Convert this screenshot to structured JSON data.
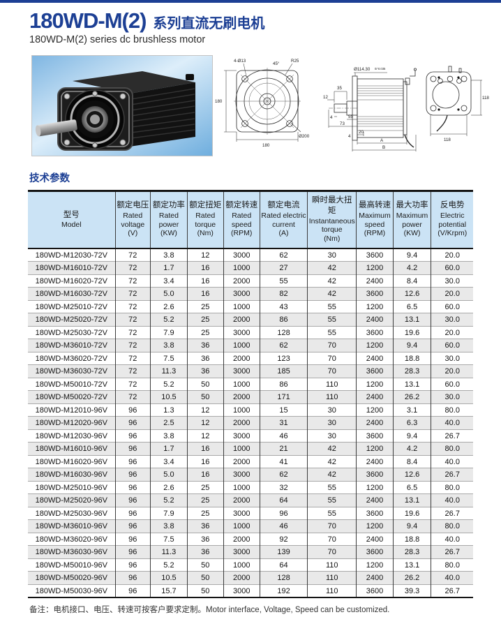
{
  "colors": {
    "brand_blue": "#1c3f94",
    "table_header_bg": "#cbe3f5",
    "row_stripe": "#e9e9e9",
    "border_dark": "#141414",
    "border_light": "#a9a9a9"
  },
  "header": {
    "model_series": "180WD-M(2)",
    "title_cn": "系列直流无刷电机",
    "subtitle": "180WD-M(2) series dc brushless motor"
  },
  "figures": {
    "front_view": {
      "bolt_label": "4-Ø13",
      "angle_label": "45°",
      "radius_label": "R25",
      "height_label": "180",
      "width_label": "180",
      "circle_label": "Ø200"
    },
    "side_view": {
      "shaft_dia_label": "Ø114.30",
      "shaft_tol_label": "0/-0.035",
      "dim_12": "12",
      "dim_35": "35",
      "dim_4a": "4",
      "dim_55": "55",
      "dim_73": "73",
      "dim_4b": "4",
      "dim_20": "20",
      "dim_a": "A",
      "dim_b": "B"
    },
    "rear_view": {
      "dim_height": "118",
      "dim_width": "118"
    }
  },
  "section_title": "技术参数",
  "table": {
    "columns": [
      {
        "key": "model",
        "cn": "型号",
        "en": "Model",
        "unit": ""
      },
      {
        "key": "rated-voltage",
        "cn": "额定电压",
        "en": "Rated voltage",
        "unit": "(V)"
      },
      {
        "key": "rated-power",
        "cn": "额定功率",
        "en": "Rated power",
        "unit": "(KW)"
      },
      {
        "key": "rated-torque",
        "cn": "额定扭矩",
        "en": "Rated torque",
        "unit": "(Nm)"
      },
      {
        "key": "rated-speed",
        "cn": "额定转速",
        "en": "Rated speed",
        "unit": "(RPM)"
      },
      {
        "key": "rated-current",
        "cn": "额定电流",
        "en": "Rated electric current",
        "unit": "(A)"
      },
      {
        "key": "instantaneous-torque",
        "cn": "瞬时最大扭矩",
        "en": "Instantaneous torque",
        "unit": "(Nm)"
      },
      {
        "key": "maximum-speed",
        "cn": "最高转速",
        "en": "Maximum speed",
        "unit": "(RPM)"
      },
      {
        "key": "maximum-power",
        "cn": "最大功率",
        "en": "Maximum power",
        "unit": "(KW)"
      },
      {
        "key": "electric-potential",
        "cn": "反电势",
        "en": "Electric potential",
        "unit": "(V/Krpm)"
      }
    ],
    "rows": [
      [
        "180WD-M12030-72V",
        "72",
        "3.8",
        "12",
        "3000",
        "62",
        "30",
        "3600",
        "9.4",
        "20.0"
      ],
      [
        "180WD-M16010-72V",
        "72",
        "1.7",
        "16",
        "1000",
        "27",
        "42",
        "1200",
        "4.2",
        "60.0"
      ],
      [
        "180WD-M16020-72V",
        "72",
        "3.4",
        "16",
        "2000",
        "55",
        "42",
        "2400",
        "8.4",
        "30.0"
      ],
      [
        "180WD-M16030-72V",
        "72",
        "5.0",
        "16",
        "3000",
        "82",
        "42",
        "3600",
        "12.6",
        "20.0"
      ],
      [
        "180WD-M25010-72V",
        "72",
        "2.6",
        "25",
        "1000",
        "43",
        "55",
        "1200",
        "6.5",
        "60.0"
      ],
      [
        "180WD-M25020-72V",
        "72",
        "5.2",
        "25",
        "2000",
        "86",
        "55",
        "2400",
        "13.1",
        "30.0"
      ],
      [
        "180WD-M25030-72V",
        "72",
        "7.9",
        "25",
        "3000",
        "128",
        "55",
        "3600",
        "19.6",
        "20.0"
      ],
      [
        "180WD-M36010-72V",
        "72",
        "3.8",
        "36",
        "1000",
        "62",
        "70",
        "1200",
        "9.4",
        "60.0"
      ],
      [
        "180WD-M36020-72V",
        "72",
        "7.5",
        "36",
        "2000",
        "123",
        "70",
        "2400",
        "18.8",
        "30.0"
      ],
      [
        "180WD-M36030-72V",
        "72",
        "11.3",
        "36",
        "3000",
        "185",
        "70",
        "3600",
        "28.3",
        "20.0"
      ],
      [
        "180WD-M50010-72V",
        "72",
        "5.2",
        "50",
        "1000",
        "86",
        "110",
        "1200",
        "13.1",
        "60.0"
      ],
      [
        "180WD-M50020-72V",
        "72",
        "10.5",
        "50",
        "2000",
        "171",
        "110",
        "2400",
        "26.2",
        "30.0"
      ],
      [
        "180WD-M12010-96V",
        "96",
        "1.3",
        "12",
        "1000",
        "15",
        "30",
        "1200",
        "3.1",
        "80.0"
      ],
      [
        "180WD-M12020-96V",
        "96",
        "2.5",
        "12",
        "2000",
        "31",
        "30",
        "2400",
        "6.3",
        "40.0"
      ],
      [
        "180WD-M12030-96V",
        "96",
        "3.8",
        "12",
        "3000",
        "46",
        "30",
        "3600",
        "9.4",
        "26.7"
      ],
      [
        "180WD-M16010-96V",
        "96",
        "1.7",
        "16",
        "1000",
        "21",
        "42",
        "1200",
        "4.2",
        "80.0"
      ],
      [
        "180WD-M16020-96V",
        "96",
        "3.4",
        "16",
        "2000",
        "41",
        "42",
        "2400",
        "8.4",
        "40.0"
      ],
      [
        "180WD-M16030-96V",
        "96",
        "5.0",
        "16",
        "3000",
        "62",
        "42",
        "3600",
        "12.6",
        "26.7"
      ],
      [
        "180WD-M25010-96V",
        "96",
        "2.6",
        "25",
        "1000",
        "32",
        "55",
        "1200",
        "6.5",
        "80.0"
      ],
      [
        "180WD-M25020-96V",
        "96",
        "5.2",
        "25",
        "2000",
        "64",
        "55",
        "2400",
        "13.1",
        "40.0"
      ],
      [
        "180WD-M25030-96V",
        "96",
        "7.9",
        "25",
        "3000",
        "96",
        "55",
        "3600",
        "19.6",
        "26.7"
      ],
      [
        "180WD-M36010-96V",
        "96",
        "3.8",
        "36",
        "1000",
        "46",
        "70",
        "1200",
        "9.4",
        "80.0"
      ],
      [
        "180WD-M36020-96V",
        "96",
        "7.5",
        "36",
        "2000",
        "92",
        "70",
        "2400",
        "18.8",
        "40.0"
      ],
      [
        "180WD-M36030-96V",
        "96",
        "11.3",
        "36",
        "3000",
        "139",
        "70",
        "3600",
        "28.3",
        "26.7"
      ],
      [
        "180WD-M50010-96V",
        "96",
        "5.2",
        "50",
        "1000",
        "64",
        "110",
        "1200",
        "13.1",
        "80.0"
      ],
      [
        "180WD-M50020-96V",
        "96",
        "10.5",
        "50",
        "2000",
        "128",
        "110",
        "2400",
        "26.2",
        "40.0"
      ],
      [
        "180WD-M50030-96V",
        "96",
        "15.7",
        "50",
        "3000",
        "192",
        "110",
        "3600",
        "39.3",
        "26.7"
      ]
    ]
  },
  "note": {
    "cn": "备注：电机接口、电压、转速可按客户要求定制。",
    "en": "Motor interface, Voltage, Speed can be customized."
  }
}
